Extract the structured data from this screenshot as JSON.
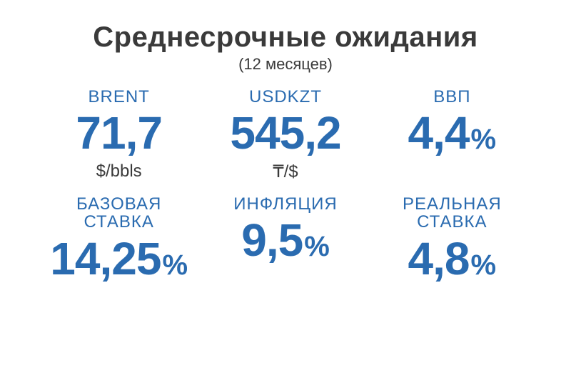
{
  "type": "infographic",
  "background_color": "#ffffff",
  "header": {
    "title": "Среднесрочные ожидания",
    "subtitle": "(12 месяцев)",
    "title_color": "#3a3a3a",
    "title_fontsize": 40,
    "subtitle_fontsize": 22
  },
  "colors": {
    "accent": "#2a6bb0",
    "text_dark": "#3a3a3a"
  },
  "typography": {
    "value_fontsize": 64,
    "value_weight": 800,
    "label_fontsize": 24,
    "pct_fontsize": 40,
    "unit_fontsize": 24
  },
  "grid": {
    "columns": 3,
    "rows": 2
  },
  "cells": [
    {
      "label": "BRENT",
      "value": "71,7",
      "has_percent": false,
      "unit": "$/bbls"
    },
    {
      "label": "USDKZT",
      "value": "545,2",
      "has_percent": false,
      "unit": "₸/$"
    },
    {
      "label": "ВВП",
      "value": "4,4",
      "has_percent": true,
      "unit": ""
    },
    {
      "label": "БАЗОВАЯ\nСТАВКА",
      "value": "14,25",
      "has_percent": true,
      "unit": ""
    },
    {
      "label": "ИНФЛЯЦИЯ",
      "value": "9,5",
      "has_percent": true,
      "unit": ""
    },
    {
      "label": "РЕАЛЬНАЯ\nСТАВКА",
      "value": "4,8",
      "has_percent": true,
      "unit": ""
    }
  ],
  "percent_sign": "%"
}
